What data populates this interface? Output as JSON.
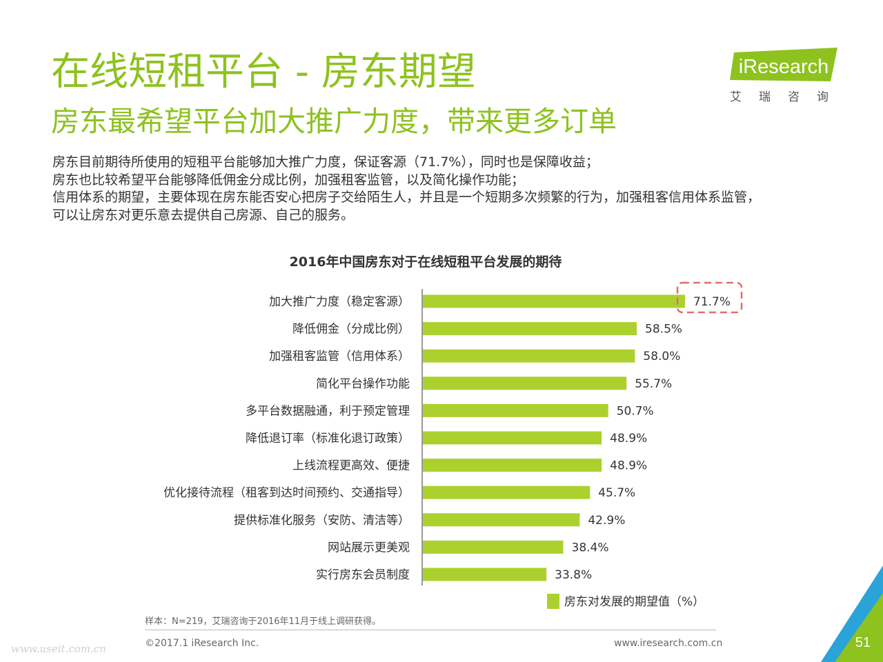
{
  "header": {
    "title": "在线短租平台 - 房东期望",
    "subtitle": "房东最希望平台加大推广力度，带来更多订单"
  },
  "logo": {
    "wordmark": "iResearch",
    "cn_name": "艾瑞咨询"
  },
  "body": {
    "lines": [
      "房东目前期待所使用的短租平台能够加大推广力度，保证客源（71.7%），同时也是保障收益；",
      "房东也比较希望平台能够降低佣金分成比例，加强租客监管，以及简化操作功能；",
      "信用体系的期望，主要体现在房东能否安心把房子交给陌生人，并且是一个短期多次频繁的行为，加强租客信用体系监管，",
      "可以让房东对更乐意去提供自己房源、自己的服务。"
    ]
  },
  "chart_data": {
    "type": "bar",
    "orientation": "horizontal",
    "title": "2016年中国房东对于在线短租平台发展的期待",
    "categories": [
      "加大推广力度（稳定客源）",
      "降低佣金（分成比例）",
      "加强租客监管（信用体系）",
      "简化平台操作功能",
      "多平台数据融通，利于预定管理",
      "降低退订率（标准化退订政策）",
      "上线流程更高效、便捷",
      "优化接待流程（租客到达时间预约、交通指导）",
      "提供标准化服务（安防、清洁等）",
      "网站展示更美观",
      "实行房东会员制度"
    ],
    "series": [
      {
        "name": "房东对发展的期望值（%）",
        "values": [
          71.7,
          58.5,
          58.0,
          55.7,
          50.7,
          48.9,
          48.9,
          45.7,
          42.9,
          38.4,
          33.8
        ],
        "value_labels": [
          "71.7%",
          "58.5%",
          "58.0%",
          "55.7%",
          "50.7%",
          "48.9%",
          "48.9%",
          "45.7%",
          "42.9%",
          "38.4%",
          "33.8%"
        ]
      }
    ],
    "highlighted_category_index": 0,
    "xlim": [
      0,
      100
    ],
    "grid": false,
    "legend_position": "bottom-right",
    "colors": {
      "bar": "#acd12f",
      "highlight": "#e46b6b"
    }
  },
  "footer": {
    "note": "样本：N=219，艾瑞咨询于2016年11月于线上调研获得。",
    "copyright": "©2017.1 iResearch Inc.",
    "website": "www.iresearch.com.cn",
    "watermark": "www.useit.com.cn",
    "page_number": "51"
  },
  "theme": {
    "accent": "#8dc21f",
    "corner_green": "#8dc21f",
    "corner_blue": "#2aa3d9"
  }
}
